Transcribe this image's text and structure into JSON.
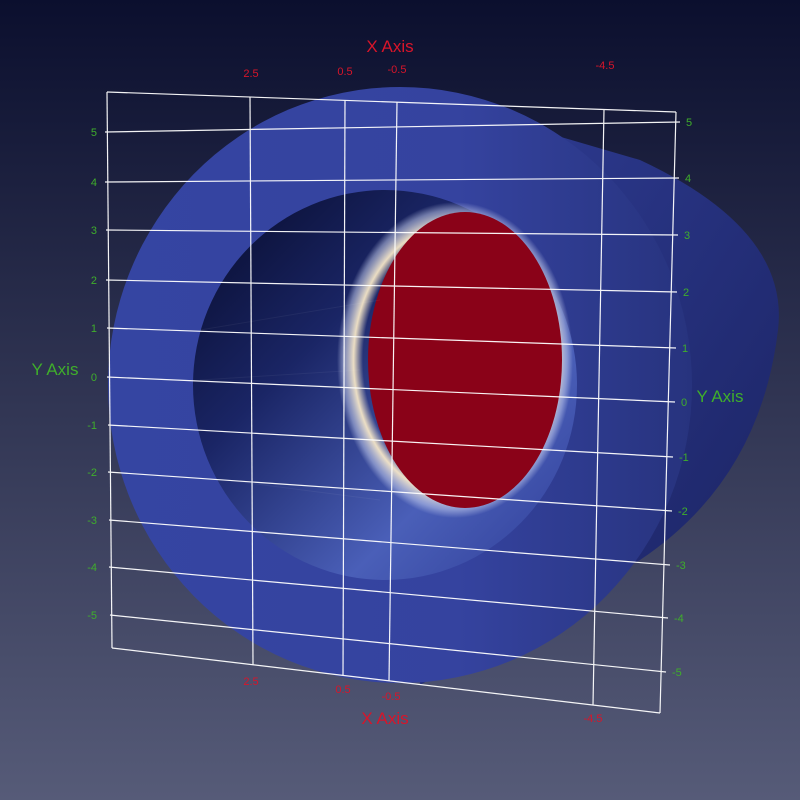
{
  "axes": {
    "x_title": "X Axis",
    "y_title": "Y Axis",
    "x_ticks_top": [
      "2.5",
      "0.5",
      "-0.5",
      "-4.5"
    ],
    "x_ticks_bottom": [
      "2.5",
      "0.5",
      "-0.5",
      "-4.5"
    ],
    "y_ticks_left": [
      "5",
      "4",
      "3",
      "2",
      "1",
      "0",
      "-1",
      "-2",
      "-3",
      "-4",
      "-5"
    ],
    "y_ticks_right": [
      "5",
      "4",
      "3",
      "2",
      "1",
      "0",
      "-1",
      "-2",
      "-3",
      "-4",
      "-5"
    ]
  },
  "colors": {
    "background_top": "#0b0f2e",
    "background_bottom": "#565b78",
    "x_axis": "#d8152a",
    "y_axis": "#3fae2b",
    "grid": "#ffffff",
    "surface": "#3a4aa6",
    "hot_region": "#8a0218"
  }
}
